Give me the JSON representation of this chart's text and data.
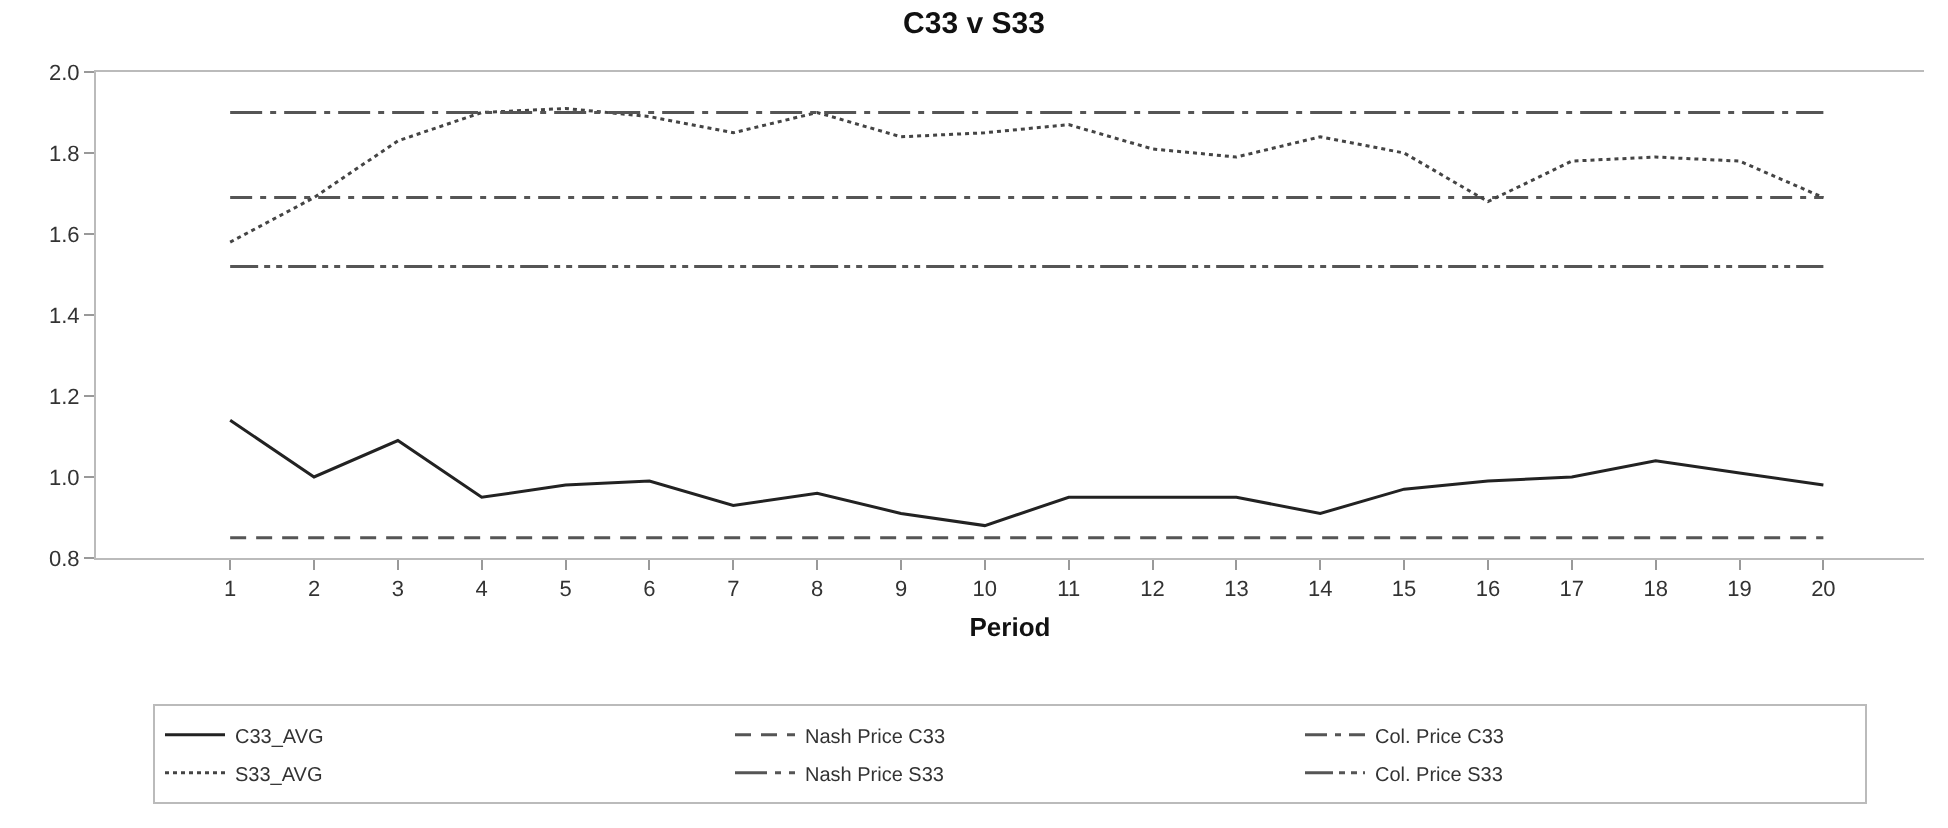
{
  "chart_data": {
    "type": "line",
    "title": "C33 v S33",
    "xlabel": "Period",
    "x": [
      1,
      2,
      3,
      4,
      5,
      6,
      7,
      8,
      9,
      10,
      11,
      12,
      13,
      14,
      15,
      16,
      17,
      18,
      19,
      20
    ],
    "xlim": [
      -0.6,
      21.2
    ],
    "xticks": [
      1,
      2,
      3,
      4,
      5,
      6,
      7,
      8,
      9,
      10,
      11,
      12,
      13,
      14,
      15,
      16,
      17,
      18,
      19,
      20
    ],
    "ylim": [
      0.8,
      2.0
    ],
    "yticks": [
      {
        "value": 0.8,
        "label": "0.8"
      },
      {
        "value": 1.0,
        "label": "1.0"
      },
      {
        "value": 1.2,
        "label": "1.2"
      },
      {
        "value": 1.4,
        "label": "1.4"
      },
      {
        "value": 1.6,
        "label": "1.6"
      },
      {
        "value": 1.8,
        "label": "1.8"
      },
      {
        "value": 2.0,
        "label": "2.0"
      }
    ],
    "grid": false,
    "legend": "bottom",
    "marker": "none",
    "series": [
      {
        "name": "C33_AVG",
        "color": "#222222",
        "line_style": "solid",
        "values": [
          1.14,
          1.0,
          1.09,
          0.95,
          0.98,
          0.99,
          0.93,
          0.96,
          0.91,
          0.88,
          0.95,
          0.95,
          0.95,
          0.91,
          0.97,
          0.99,
          1.0,
          1.04,
          1.01,
          0.98
        ]
      },
      {
        "name": "Nash Price C33",
        "color": "#555555",
        "line_style": "dashed",
        "values": [
          0.85,
          0.85,
          0.85,
          0.85,
          0.85,
          0.85,
          0.85,
          0.85,
          0.85,
          0.85,
          0.85,
          0.85,
          0.85,
          0.85,
          0.85,
          0.85,
          0.85,
          0.85,
          0.85,
          0.85
        ]
      },
      {
        "name": "Col. Price C33",
        "color": "#555555",
        "line_style": "dashdot",
        "values": [
          1.69,
          1.69,
          1.69,
          1.69,
          1.69,
          1.69,
          1.69,
          1.69,
          1.69,
          1.69,
          1.69,
          1.69,
          1.69,
          1.69,
          1.69,
          1.69,
          1.69,
          1.69,
          1.69,
          1.69
        ]
      },
      {
        "name": "S33_AVG",
        "color": "#444444",
        "line_style": "dotted",
        "values": [
          1.58,
          1.69,
          1.83,
          1.9,
          1.91,
          1.89,
          1.85,
          1.9,
          1.84,
          1.85,
          1.87,
          1.81,
          1.79,
          1.84,
          1.8,
          1.68,
          1.78,
          1.79,
          1.78,
          1.69
        ]
      },
      {
        "name": "Nash Price S33",
        "color": "#555555",
        "line_style": "longdashdot",
        "values": [
          1.9,
          1.9,
          1.9,
          1.9,
          1.9,
          1.9,
          1.9,
          1.9,
          1.9,
          1.9,
          1.9,
          1.9,
          1.9,
          1.9,
          1.9,
          1.9,
          1.9,
          1.9,
          1.9,
          1.9
        ]
      },
      {
        "name": "Col. Price S33",
        "color": "#555555",
        "line_style": "dashdotdot",
        "values": [
          1.52,
          1.52,
          1.52,
          1.52,
          1.52,
          1.52,
          1.52,
          1.52,
          1.52,
          1.52,
          1.52,
          1.52,
          1.52,
          1.52,
          1.52,
          1.52,
          1.52,
          1.52,
          1.52,
          1.52
        ]
      }
    ]
  }
}
